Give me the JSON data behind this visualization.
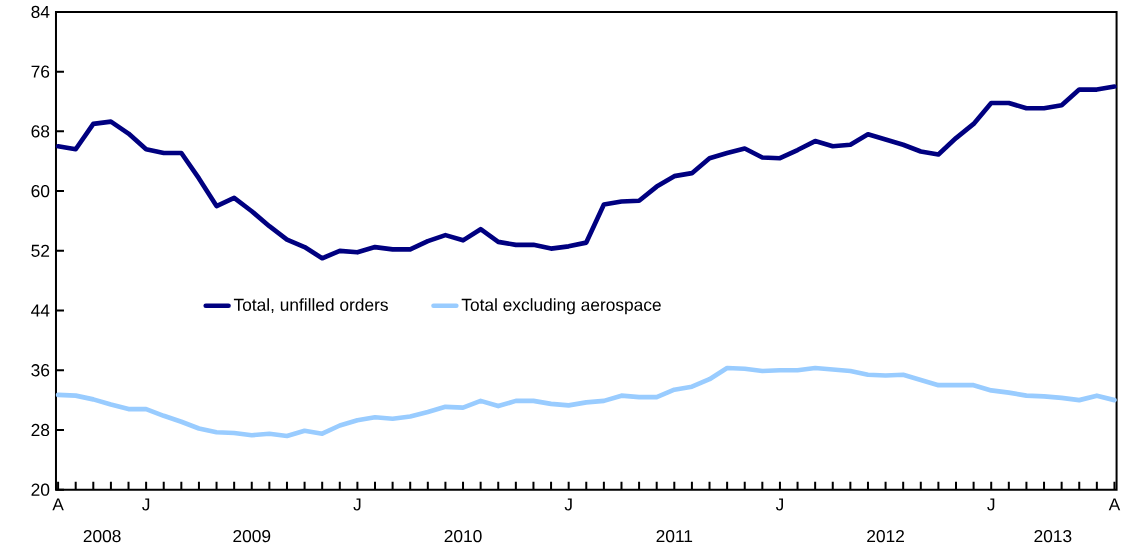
{
  "chart_data": {
    "type": "line",
    "categories": [
      "A",
      null,
      null,
      null,
      null,
      "J",
      null,
      null,
      null,
      null,
      null,
      null,
      null,
      null,
      null,
      null,
      null,
      "J",
      null,
      null,
      null,
      null,
      null,
      null,
      null,
      null,
      null,
      null,
      null,
      "J",
      null,
      null,
      null,
      null,
      null,
      null,
      null,
      null,
      null,
      null,
      null,
      "J",
      null,
      null,
      null,
      null,
      null,
      null,
      null,
      null,
      null,
      null,
      null,
      "J",
      null,
      null,
      null,
      null,
      null,
      null,
      "A"
    ],
    "series": [
      {
        "name": "Total, unfilled orders",
        "color": "#000080",
        "values": [
          66.0,
          65.6,
          69.0,
          69.3,
          67.7,
          65.6,
          65.1,
          65.1,
          61.7,
          58.0,
          59.1,
          57.3,
          55.3,
          53.5,
          52.5,
          51.0,
          52.0,
          51.8,
          52.5,
          52.2,
          52.2,
          53.3,
          54.1,
          53.4,
          54.9,
          53.2,
          52.8,
          52.8,
          52.3,
          52.6,
          53.1,
          58.2,
          58.6,
          58.7,
          60.6,
          62.0,
          62.4,
          64.4,
          65.1,
          65.7,
          64.5,
          64.4,
          65.5,
          66.7,
          66.0,
          66.2,
          67.6,
          66.9,
          66.2,
          65.3,
          64.9,
          67.1,
          69.0,
          71.8,
          71.8,
          71.1,
          71.1,
          71.5,
          73.6,
          73.6,
          74.0
        ]
      },
      {
        "name": "Total excluding aerospace",
        "color": "#99ccff",
        "values": [
          32.7,
          32.6,
          32.1,
          31.4,
          30.8,
          30.8,
          29.9,
          29.1,
          28.2,
          27.7,
          27.6,
          27.3,
          27.5,
          27.2,
          27.9,
          27.5,
          28.6,
          29.3,
          29.7,
          29.5,
          29.8,
          30.4,
          31.1,
          31.0,
          31.9,
          31.2,
          31.9,
          31.9,
          31.5,
          31.3,
          31.7,
          31.9,
          32.6,
          32.4,
          32.4,
          33.4,
          33.8,
          34.8,
          36.3,
          36.2,
          35.9,
          36.0,
          36.0,
          36.3,
          36.1,
          35.9,
          35.4,
          35.3,
          35.4,
          34.7,
          34.0,
          34.0,
          34.0,
          33.3,
          33.0,
          32.6,
          32.5,
          32.3,
          32.0,
          32.6,
          32.0
        ]
      }
    ],
    "ylim": [
      20,
      84
    ],
    "yticks": [
      20,
      28,
      36,
      44,
      52,
      60,
      68,
      76,
      84
    ],
    "annotations": [
      "2008",
      "2009",
      "2010",
      "2011",
      "2012",
      "2013"
    ],
    "legend": "center",
    "grid": false,
    "marker": "none",
    "line_style": "solid"
  }
}
